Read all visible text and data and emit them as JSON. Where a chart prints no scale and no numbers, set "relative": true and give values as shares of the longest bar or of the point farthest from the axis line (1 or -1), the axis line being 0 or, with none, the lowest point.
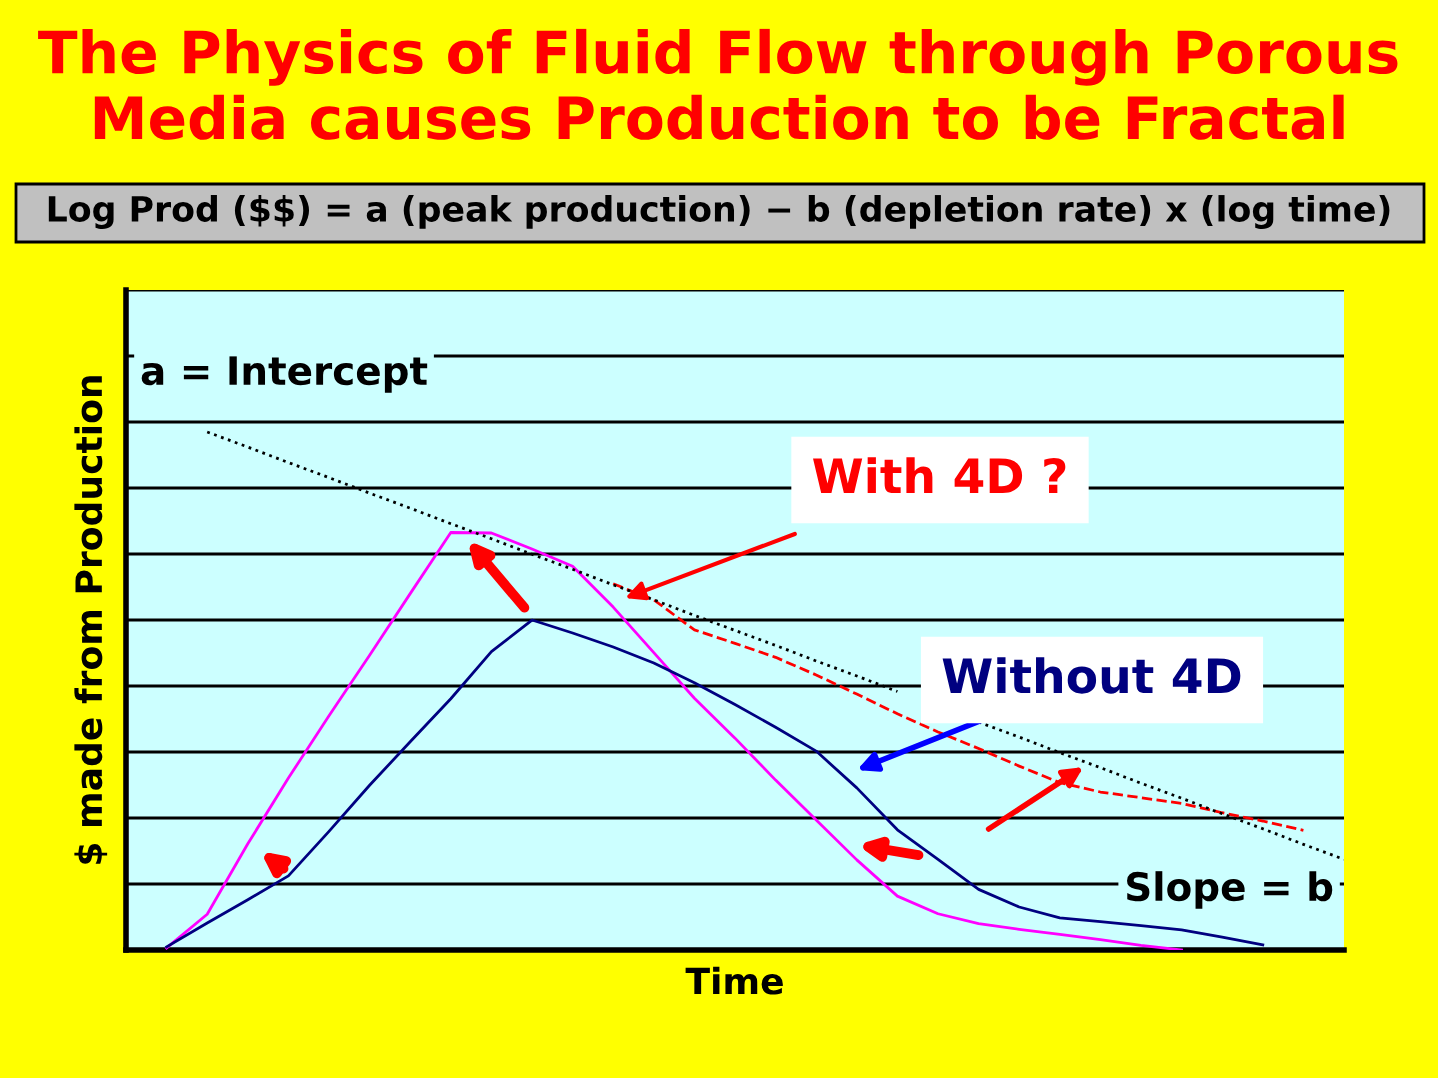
{
  "chart_data": {
    "type": "line",
    "relative": true,
    "title": "The Physics of Fluid Flow through Porous\nMedia causes Production to be Fractal",
    "subtitle": "Log Prod ($$) = a (peak production) − b (depletion rate) x (log time)",
    "xlabel": "Time",
    "ylabel": "$ made from Production",
    "grid": "y",
    "tick_labels": false,
    "marker": "none",
    "annotations": [
      "a = Intercept",
      "Slope = b"
    ],
    "categories": [
      null,
      null,
      null,
      null,
      null,
      null,
      null,
      null,
      null,
      null,
      null,
      null,
      null,
      null,
      null,
      null,
      null,
      null,
      null,
      null,
      null,
      null,
      null,
      null,
      null,
      null,
      null,
      null,
      null,
      null,
      null
    ],
    "series": [
      {
        "color": "#ff00ff",
        "values": [
          null,
          0.004,
          0.069,
          0.205,
          0.332,
          0.452,
          0.569,
          0.688,
          0.806,
          0.805,
          0.774,
          0.741,
          0.662,
          0.574,
          0.486,
          0.409,
          0.328,
          0.251,
          0.174,
          0.104,
          0.07,
          0.051,
          0.04,
          0.03,
          0.02,
          0.009,
          0.0,
          null,
          null,
          null,
          null
        ]
      },
      {
        "name": "Without 4D",
        "color": "#000080",
        "values": [
          null,
          0.006,
          0.052,
          0.097,
          0.143,
          0.229,
          0.318,
          0.402,
          0.485,
          0.576,
          0.637,
          0.612,
          0.585,
          0.554,
          0.516,
          0.474,
          0.43,
          0.384,
          0.313,
          0.232,
          0.175,
          0.117,
          0.083,
          0.062,
          0.055,
          0.047,
          0.039,
          0.025,
          0.01,
          null,
          null
        ]
      },
      {
        "name": "With 4D ?",
        "color": "#ff0000",
        "line_style": "dashed",
        "values": [
          null,
          null,
          null,
          null,
          null,
          null,
          null,
          null,
          null,
          null,
          null,
          null,
          0.707,
          0.676,
          0.618,
          0.592,
          0.565,
          0.531,
          0.494,
          0.456,
          0.421,
          0.389,
          0.355,
          0.323,
          0.305,
          0.294,
          0.283,
          0.265,
          0.249,
          0.231,
          null
        ]
      },
      {
        "color": "#000000",
        "line_style": "dotted",
        "values": [
          null,
          null,
          1.0,
          0.971,
          0.941,
          0.912,
          0.882,
          0.853,
          0.823,
          0.794,
          0.764,
          0.735,
          0.705,
          0.676,
          0.646,
          0.617,
          0.588,
          0.558,
          0.529,
          0.499,
          null,
          0.44,
          0.411,
          0.381,
          0.352,
          0.322,
          0.293,
          0.263,
          0.234,
          0.204,
          0.175
        ]
      }
    ]
  }
}
